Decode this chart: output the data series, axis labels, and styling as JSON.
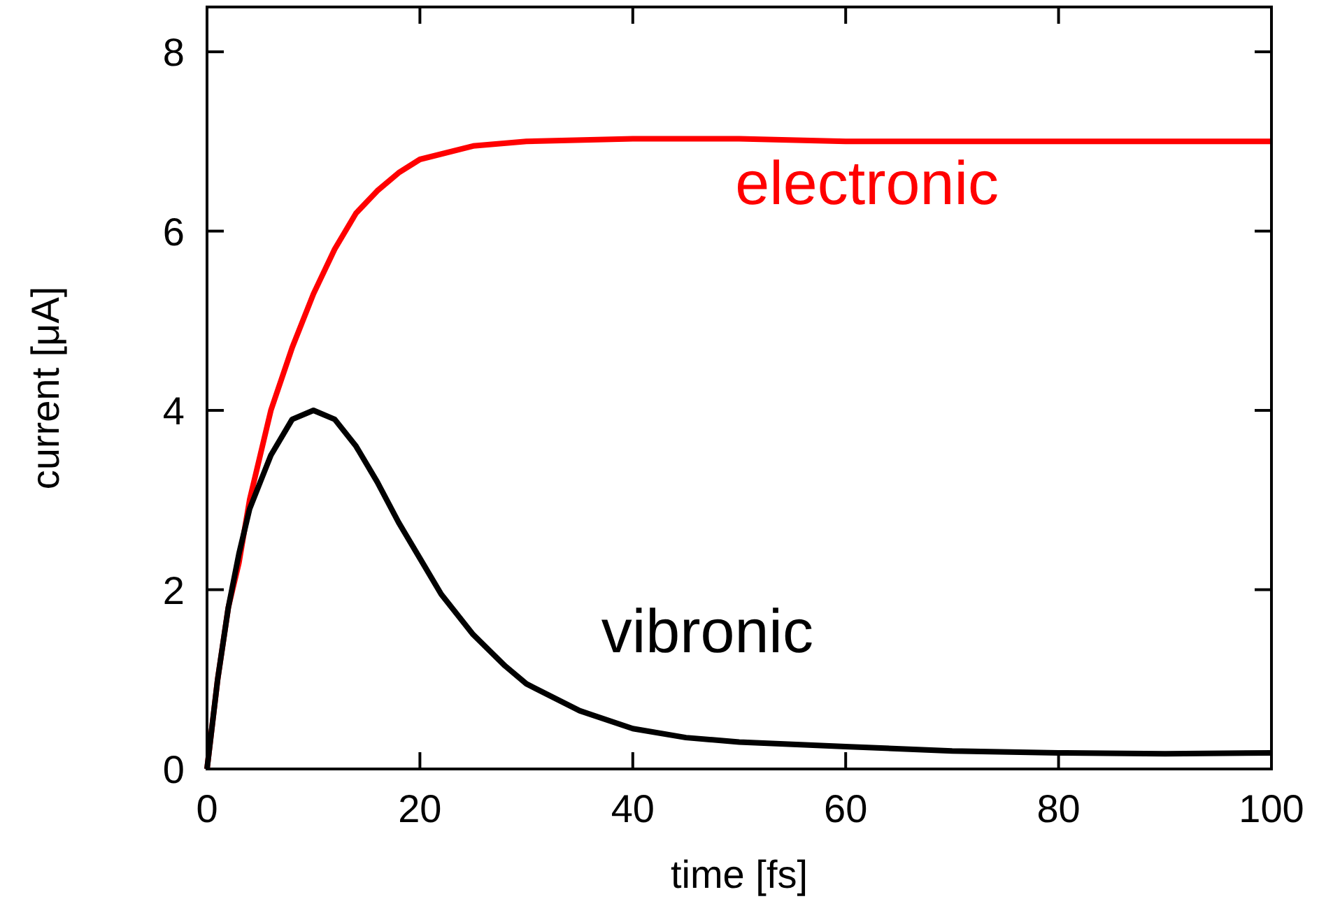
{
  "chart_data": {
    "type": "line",
    "xlabel": "time [fs]",
    "ylabel": "current [μA]",
    "xlim": [
      0,
      100
    ],
    "ylim": [
      0,
      8.5
    ],
    "xticks": [
      0,
      20,
      40,
      60,
      80,
      100
    ],
    "yticks": [
      0,
      2,
      4,
      6,
      8
    ],
    "grid": false,
    "line_style": "solid",
    "marker": "none",
    "series": [
      {
        "name": "electronic",
        "color": "#ff0000",
        "x": [
          0,
          1,
          2,
          3,
          4,
          5,
          6,
          8,
          10,
          12,
          14,
          16,
          18,
          20,
          25,
          30,
          40,
          50,
          60,
          80,
          100
        ],
        "values": [
          0,
          1.0,
          1.8,
          2.3,
          3.0,
          3.5,
          4.0,
          4.7,
          5.3,
          5.8,
          6.2,
          6.45,
          6.65,
          6.8,
          6.95,
          7.0,
          7.03,
          7.03,
          7.0,
          7.0,
          7.0
        ]
      },
      {
        "name": "vibronic",
        "color": "#000000",
        "x": [
          0,
          1,
          2,
          3,
          4,
          5,
          6,
          8,
          10,
          12,
          14,
          16,
          18,
          20,
          22,
          25,
          28,
          30,
          35,
          40,
          45,
          50,
          60,
          70,
          80,
          90,
          100
        ],
        "values": [
          0,
          1.0,
          1.8,
          2.4,
          2.9,
          3.2,
          3.5,
          3.9,
          4.0,
          3.9,
          3.6,
          3.2,
          2.75,
          2.35,
          1.95,
          1.5,
          1.15,
          0.95,
          0.65,
          0.45,
          0.35,
          0.3,
          0.25,
          0.2,
          0.18,
          0.17,
          0.18
        ]
      }
    ]
  }
}
